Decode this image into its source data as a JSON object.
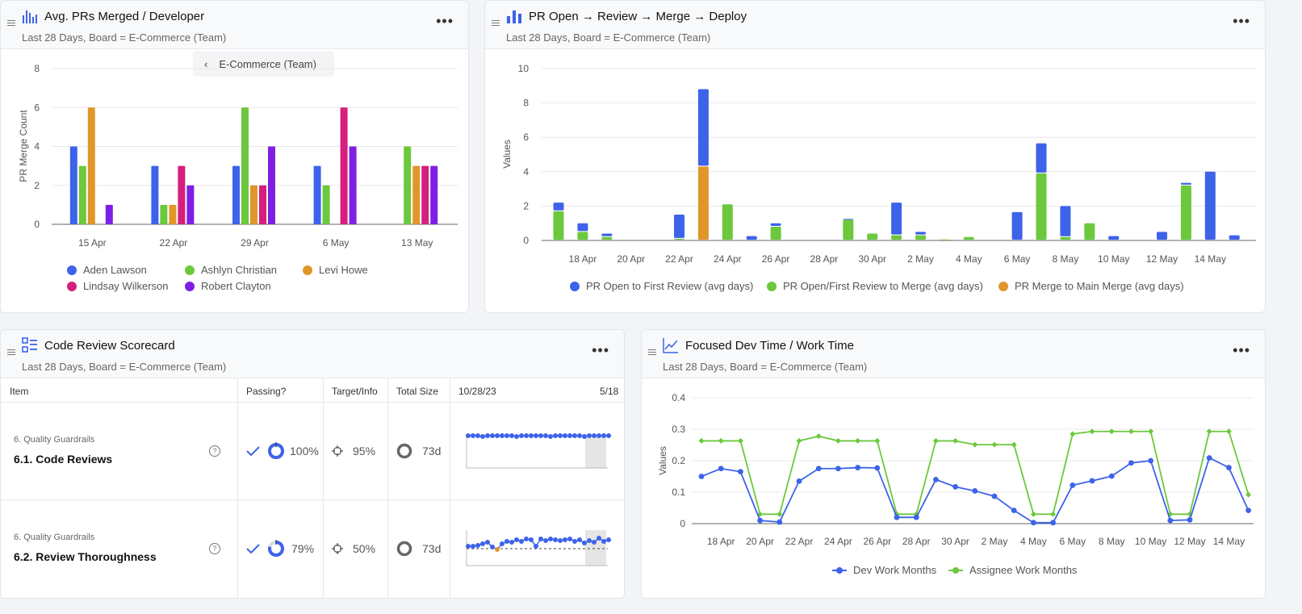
{
  "panel1": {
    "title": "Avg. PRs Merged / Developer",
    "subtitle": "Last 28 Days, Board = E-Commerce (Team)",
    "breadcrumb": "E-Commerce (Team)",
    "icon": "bar-chart-icon",
    "chart_data": {
      "type": "bar",
      "ylabel": "PR Merge Count",
      "ylim": [
        0,
        8
      ],
      "yticks": [
        0,
        2,
        4,
        6,
        8
      ],
      "categories": [
        "15 Apr",
        "22 Apr",
        "29 Apr",
        "6 May",
        "13 May"
      ],
      "series": [
        {
          "name": "Aden Lawson",
          "color": "#3d63ea",
          "values": [
            4,
            3,
            3,
            3,
            0
          ]
        },
        {
          "name": "Ashlyn Christian",
          "color": "#6cc83c",
          "values": [
            3,
            1,
            6,
            2,
            4
          ]
        },
        {
          "name": "Levi Howe",
          "color": "#e0962a",
          "values": [
            6,
            1,
            2,
            0,
            3
          ]
        },
        {
          "name": "Lindsay Wilkerson",
          "color": "#d61f7c",
          "values": [
            0,
            3,
            2,
            6,
            3
          ]
        },
        {
          "name": "Robert Clayton",
          "color": "#7e1fe3",
          "values": [
            1,
            2,
            4,
            4,
            3
          ]
        }
      ]
    }
  },
  "panel2": {
    "title": "PR Open → Review → Merge → Deploy",
    "subtitle": "Last 28 Days, Board = E-Commerce (Team)",
    "icon": "bar-chart-icon",
    "chart_data": {
      "type": "bar",
      "stacked": true,
      "ylabel": "Values",
      "ylim": [
        0,
        10
      ],
      "yticks": [
        0,
        2,
        4,
        6,
        8,
        10
      ],
      "x": [
        "17 Apr",
        "18 Apr",
        "19 Apr",
        "20 Apr",
        "21 Apr",
        "22 Apr",
        "23 Apr",
        "24 Apr",
        "25 Apr",
        "26 Apr",
        "27 Apr",
        "28 Apr",
        "29 Apr",
        "30 Apr",
        "1 May",
        "2 May",
        "3 May",
        "4 May",
        "5 May",
        "6 May",
        "7 May",
        "8 May",
        "9 May",
        "10 May",
        "11 May",
        "12 May",
        "13 May",
        "14 May",
        "15 May"
      ],
      "xtick_labels": [
        "18 Apr",
        "20 Apr",
        "22 Apr",
        "24 Apr",
        "26 Apr",
        "28 Apr",
        "30 Apr",
        "2 May",
        "4 May",
        "6 May",
        "8 May",
        "10 May",
        "12 May",
        "14 May"
      ],
      "series": [
        {
          "name": "PR Merge to Main Merge (avg days)",
          "color": "#e0962a",
          "values": [
            0,
            0,
            0,
            0,
            0,
            0,
            4.3,
            0,
            0,
            0,
            0,
            0,
            0,
            0,
            0,
            0,
            0,
            0,
            0,
            0,
            0,
            0,
            0,
            0,
            0,
            0,
            0,
            0,
            0
          ]
        },
        {
          "name": "PR Open/First Review to Merge (avg days)",
          "color": "#6cc83c",
          "values": [
            1.7,
            0.5,
            0.2,
            0,
            0,
            0.1,
            0,
            2.1,
            0,
            0.8,
            0,
            0,
            1.2,
            0.4,
            0.3,
            0.3,
            0.05,
            0.2,
            0,
            0,
            3.9,
            0.2,
            1.0,
            0,
            0,
            0,
            3.2,
            0,
            0
          ]
        },
        {
          "name": "PR Open to First Review (avg days)",
          "color": "#3d63ea",
          "values": [
            0.5,
            0.5,
            0.2,
            0,
            0,
            1.4,
            4.5,
            0,
            0.25,
            0.2,
            0,
            0,
            0.05,
            0,
            1.9,
            0.2,
            0,
            0,
            0,
            1.65,
            1.75,
            1.8,
            0,
            0.25,
            0,
            0.5,
            0.15,
            4.0,
            0.3
          ]
        }
      ],
      "legend_order": [
        "PR Open to First Review (avg days)",
        "PR Open/First Review to Merge (avg days)",
        "PR Merge to Main Merge (avg days)"
      ]
    }
  },
  "panel3": {
    "title": "Code Review Scorecard",
    "subtitle": "Last 28 Days, Board = E-Commerce (Team)",
    "icon": "checklist-icon",
    "columns": {
      "item": "Item",
      "passing": "Passing?",
      "target": "Target/Info",
      "size": "Total Size",
      "range_start": "10/28/23",
      "range_end": "5/18"
    },
    "rows": [
      {
        "category": "6. Quality Guardrails",
        "name": "6.1. Code Reviews",
        "passing": "100%",
        "target": "95%",
        "size": "73d",
        "passing_fraction": 1.0
      },
      {
        "category": "6. Quality Guardrails",
        "name": "6.2. Review Thoroughness",
        "passing": "79%",
        "target": "50%",
        "size": "73d",
        "passing_fraction": 0.79
      }
    ]
  },
  "panel4": {
    "title": "Focused Dev Time / Work Time",
    "subtitle": "Last 28 Days, Board = E-Commerce (Team)",
    "icon": "line-chart-icon",
    "chart_data": {
      "type": "line",
      "ylabel": "Values",
      "ylim": [
        0,
        0.4
      ],
      "yticks": [
        "0",
        "0.1",
        "0.2",
        "0.3",
        "0.4"
      ],
      "x": [
        "17 Apr",
        "18 Apr",
        "19 Apr",
        "20 Apr",
        "21 Apr",
        "22 Apr",
        "23 Apr",
        "24 Apr",
        "25 Apr",
        "26 Apr",
        "27 Apr",
        "28 Apr",
        "29 Apr",
        "30 Apr",
        "1 May",
        "2 May",
        "3 May",
        "4 May",
        "5 May",
        "6 May",
        "7 May",
        "8 May",
        "9 May",
        "10 May",
        "11 May",
        "12 May",
        "13 May",
        "14 May",
        "15 May"
      ],
      "xtick_labels": [
        "18 Apr",
        "20 Apr",
        "22 Apr",
        "24 Apr",
        "26 Apr",
        "28 Apr",
        "30 Apr",
        "2 May",
        "4 May",
        "6 May",
        "8 May",
        "10 May",
        "12 May",
        "14 May"
      ],
      "series": [
        {
          "name": "Dev Work Months",
          "color": "#3d63ea",
          "values": [
            0.15,
            0.175,
            0.165,
            0.01,
            0.005,
            0.135,
            0.175,
            0.175,
            0.178,
            0.177,
            0.02,
            0.02,
            0.14,
            0.117,
            0.104,
            0.087,
            0.042,
            0.003,
            0.003,
            0.122,
            0.136,
            0.151,
            0.193,
            0.2,
            0.01,
            0.012,
            0.209,
            0.178,
            0.042
          ]
        },
        {
          "name": "Assignee Work Months",
          "color": "#6cc83c",
          "values": [
            0.263,
            0.263,
            0.263,
            0.03,
            0.03,
            0.263,
            0.278,
            0.263,
            0.263,
            0.263,
            0.03,
            0.03,
            0.263,
            0.263,
            0.251,
            0.251,
            0.251,
            0.03,
            0.03,
            0.285,
            0.293,
            0.293,
            0.293,
            0.293,
            0.03,
            0.03,
            0.293,
            0.293,
            0.092
          ]
        }
      ]
    }
  }
}
